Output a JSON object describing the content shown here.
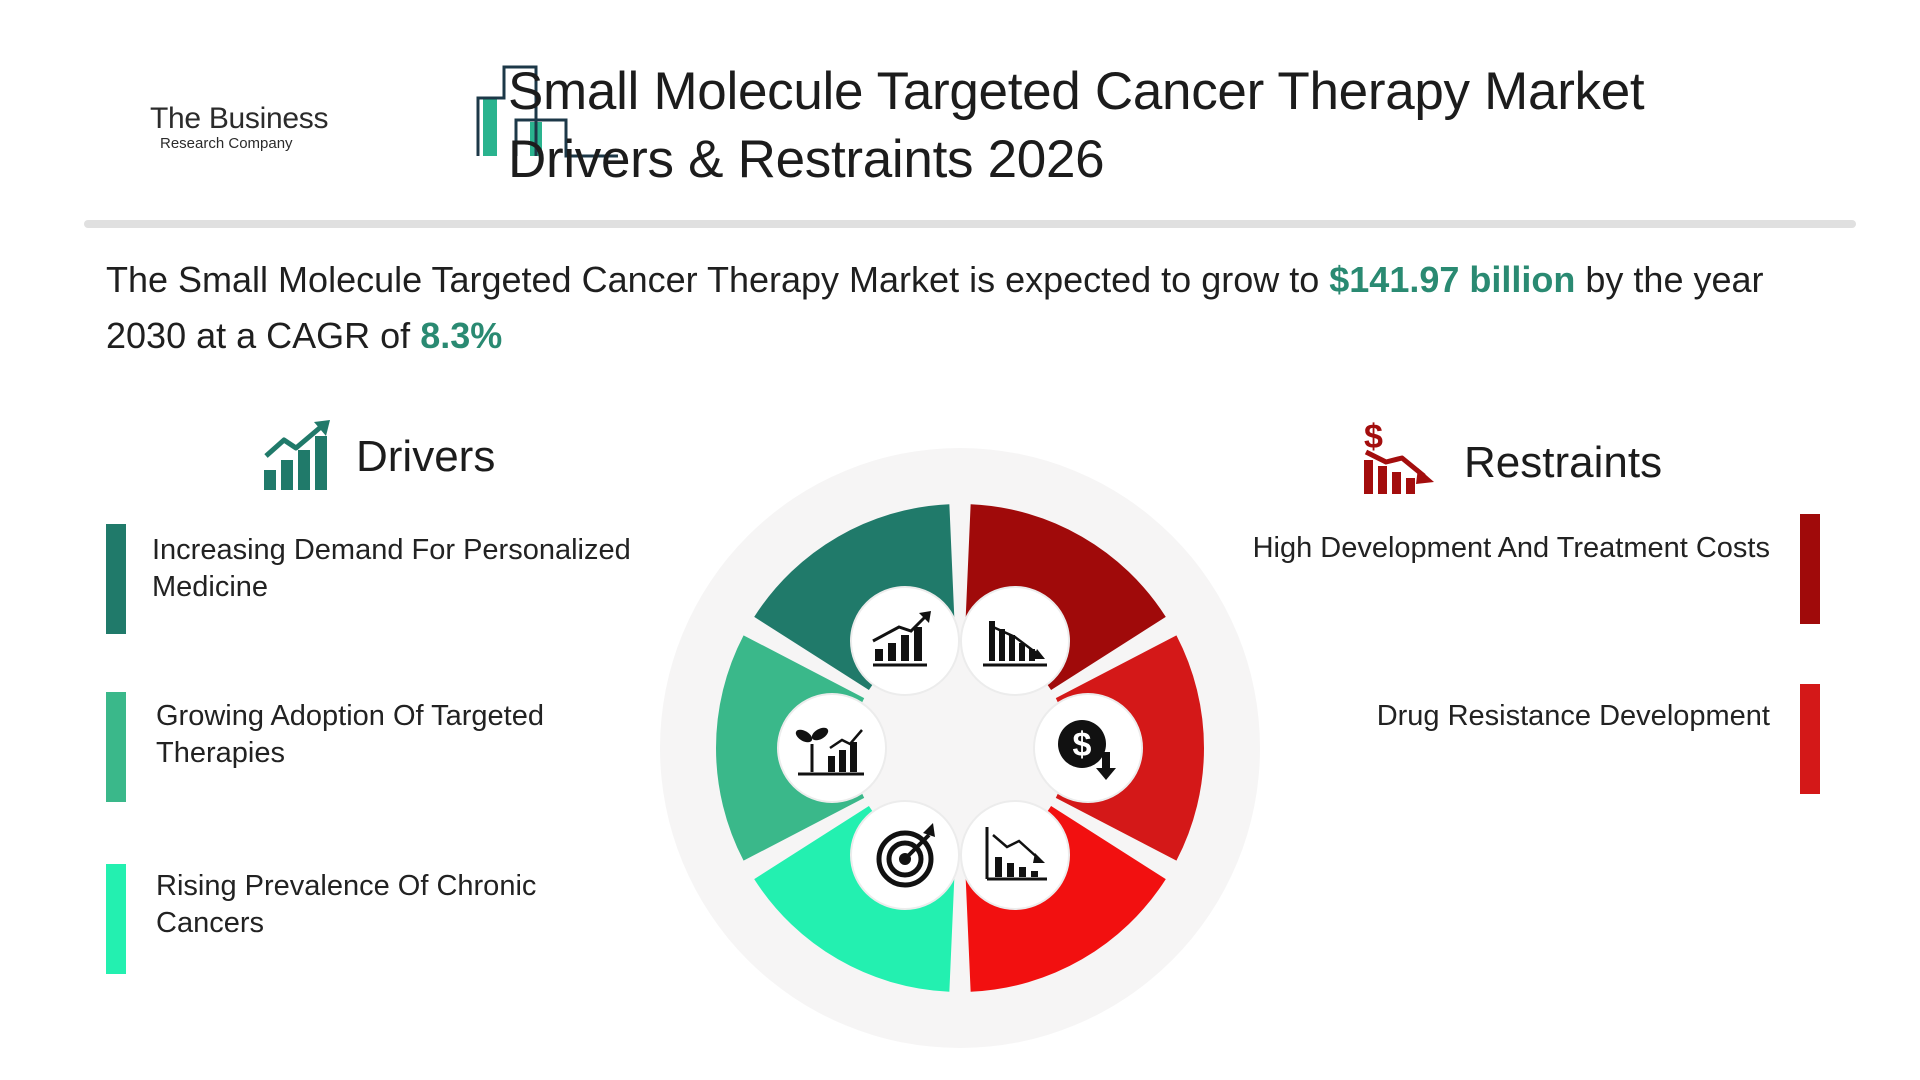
{
  "header": {
    "logo_name": "The Business",
    "logo_sub": "Research Company",
    "title_line1": "Small Molecule Targeted Cancer Therapy Market",
    "title_line2": "Drivers & Restraints 2026"
  },
  "summary": {
    "text_before": "The Small Molecule Targeted Cancer Therapy Market is expected to grow to ",
    "value": "$141.97 billion",
    "text_middle": " by the year 2030 at a CAGR of ",
    "cagr": "8.3%"
  },
  "drivers": {
    "heading": "Drivers",
    "icon": "growth-chart-icon",
    "items": [
      {
        "label": "Increasing Demand For Personalized Medicine",
        "color": "#207a6a"
      },
      {
        "label": "Growing Adoption Of Targeted Therapies",
        "color": "#3ab88a"
      },
      {
        "label": "Rising Prevalence Of Chronic Cancers",
        "color": "#23f0b0"
      }
    ]
  },
  "restraints": {
    "heading": "Restraints",
    "icon": "dollar-decline-icon",
    "items": [
      {
        "label": "High Development And Treatment Costs",
        "color": "#a00a0a"
      },
      {
        "label": "Drug Resistance Development",
        "color": "#d41818"
      }
    ]
  },
  "wheel": {
    "segment_colors": [
      "#207a6a",
      "#3ab88a",
      "#23f0b0",
      "#a00a0a",
      "#d41818",
      "#f21010"
    ],
    "icons": [
      "growth-chart-icon",
      "plant-chart-icon",
      "target-icon",
      "declining-bars-icon",
      "dollar-down-icon",
      "declining-line-chart-icon"
    ]
  }
}
